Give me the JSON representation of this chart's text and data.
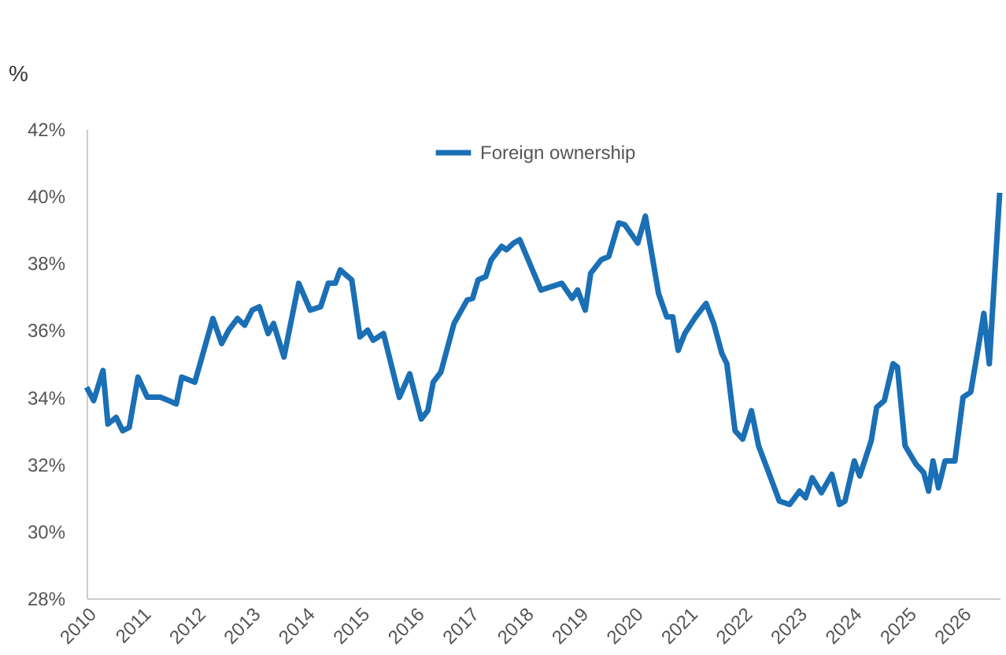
{
  "chart_data": {
    "type": "line",
    "ylabel": "%",
    "legend": "top",
    "grid": false,
    "marker": "none",
    "line_style": "solid",
    "xlim": [
      2010,
      2026.7
    ],
    "xticks": [
      2010,
      2011,
      2012,
      2013,
      2014,
      2015,
      2016,
      2017,
      2018,
      2019,
      2020,
      2021,
      2022,
      2023,
      2024,
      2025,
      2026
    ],
    "ylim": [
      28,
      42
    ],
    "yticks": [
      {
        "value": 28,
        "label": "28%"
      },
      {
        "value": 30,
        "label": "30%"
      },
      {
        "value": 32,
        "label": "32%"
      },
      {
        "value": 34,
        "label": "34%"
      },
      {
        "value": 36,
        "label": "36%"
      },
      {
        "value": 38,
        "label": "38%"
      },
      {
        "value": 40,
        "label": "40%"
      },
      {
        "value": 42,
        "label": "42%"
      }
    ],
    "series": [
      {
        "name": "Foreign ownership",
        "color": "#1a6fb5",
        "x": [
          2010.0,
          2010.13,
          2010.3,
          2010.39,
          2010.54,
          2010.66,
          2010.78,
          2010.94,
          2011.11,
          2011.35,
          2011.5,
          2011.64,
          2011.74,
          2011.98,
          2012.31,
          2012.47,
          2012.6,
          2012.76,
          2012.89,
          2013.03,
          2013.16,
          2013.32,
          2013.42,
          2013.61,
          2013.88,
          2014.09,
          2014.28,
          2014.42,
          2014.55,
          2014.64,
          2014.85,
          2015.0,
          2015.14,
          2015.24,
          2015.43,
          2015.72,
          2015.91,
          2016.12,
          2016.24,
          2016.34,
          2016.48,
          2016.72,
          2016.96,
          2017.06,
          2017.16,
          2017.3,
          2017.4,
          2017.59,
          2017.68,
          2017.81,
          2017.92,
          2018.31,
          2018.69,
          2018.88,
          2018.98,
          2019.12,
          2019.22,
          2019.41,
          2019.55,
          2019.73,
          2019.84,
          2020.08,
          2020.22,
          2020.46,
          2020.61,
          2020.72,
          2020.82,
          2020.94,
          2021.14,
          2021.33,
          2021.47,
          2021.62,
          2021.71,
          2021.86,
          2022.0,
          2022.16,
          2022.29,
          2022.51,
          2022.67,
          2022.86,
          2023.04,
          2023.15,
          2023.27,
          2023.44,
          2023.63,
          2023.77,
          2023.87,
          2024.04,
          2024.14,
          2024.35,
          2024.45,
          2024.59,
          2024.75,
          2024.83,
          2024.97,
          2025.17,
          2025.31,
          2025.4,
          2025.48,
          2025.58,
          2025.7,
          2025.88,
          2026.03,
          2026.17,
          2026.32,
          2026.41,
          2026.51,
          2026.7
        ],
        "values": [
          34.3,
          33.9,
          34.8,
          33.2,
          33.4,
          33.0,
          33.1,
          34.6,
          34.0,
          34.0,
          33.9,
          33.8,
          34.6,
          34.45,
          36.35,
          35.6,
          36.0,
          36.35,
          36.15,
          36.6,
          36.7,
          35.9,
          36.2,
          35.2,
          37.4,
          36.6,
          36.7,
          37.4,
          37.4,
          37.8,
          37.5,
          35.8,
          36.0,
          35.7,
          35.9,
          34.0,
          34.7,
          33.35,
          33.6,
          34.45,
          34.75,
          36.2,
          36.9,
          36.95,
          37.5,
          37.6,
          38.1,
          38.5,
          38.4,
          38.6,
          38.7,
          37.2,
          37.4,
          36.95,
          37.2,
          36.6,
          37.7,
          38.1,
          38.2,
          39.2,
          39.15,
          38.6,
          39.4,
          37.1,
          36.4,
          36.4,
          35.4,
          35.9,
          36.4,
          36.8,
          36.2,
          35.3,
          35.0,
          33.0,
          32.75,
          33.6,
          32.55,
          31.6,
          30.9,
          30.8,
          31.2,
          31.0,
          31.6,
          31.15,
          31.7,
          30.8,
          30.9,
          32.1,
          31.65,
          32.7,
          33.7,
          33.9,
          35.0,
          34.9,
          32.55,
          32.0,
          31.75,
          31.2,
          32.1,
          31.3,
          32.1,
          32.1,
          34.0,
          34.15,
          35.6,
          36.5,
          35.0,
          40.1
        ]
      }
    ]
  }
}
